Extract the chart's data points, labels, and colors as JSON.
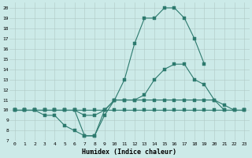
{
  "xlabel": "Humidex (Indice chaleur)",
  "bg_color": "#cceae8",
  "line_color": "#2d7a6e",
  "x": [
    0,
    1,
    2,
    3,
    4,
    5,
    6,
    7,
    8,
    9,
    10,
    11,
    12,
    13,
    14,
    15,
    16,
    17,
    18,
    19,
    20,
    21,
    22,
    23
  ],
  "line1": [
    10,
    10,
    10,
    10,
    10,
    10,
    10,
    7.5,
    7.5,
    10,
    11,
    13,
    16.5,
    19,
    19,
    20,
    20,
    19,
    17,
    14.5,
    null,
    null,
    null,
    null
  ],
  "line2": [
    10,
    10,
    10,
    10,
    10,
    10,
    10,
    9.5,
    9.5,
    10,
    11,
    11,
    11,
    11.5,
    13,
    14,
    14.5,
    14.5,
    13,
    12.5,
    11,
    10,
    10,
    10
  ],
  "line3": [
    10,
    10,
    10,
    9.5,
    9.5,
    8.5,
    8,
    7.5,
    7.5,
    9.5,
    11,
    11,
    11,
    11,
    11,
    11,
    11,
    11,
    11,
    11,
    11,
    10.5,
    10,
    10
  ],
  "line4": [
    10,
    10,
    10,
    10,
    10,
    10,
    10,
    10,
    10,
    10,
    10,
    10,
    10,
    10,
    10,
    10,
    10,
    10,
    10,
    10,
    10,
    10,
    10,
    10
  ],
  "yticks": [
    7,
    8,
    9,
    10,
    11,
    12,
    13,
    14,
    15,
    16,
    17,
    18,
    19,
    20
  ],
  "xticks": [
    0,
    1,
    2,
    3,
    4,
    5,
    6,
    7,
    8,
    9,
    10,
    11,
    12,
    13,
    14,
    15,
    16,
    17,
    18,
    19,
    20,
    21,
    22,
    23
  ],
  "ylim_min": 7,
  "ylim_max": 20.5,
  "xlim_min": -0.5,
  "xlim_max": 23.5
}
